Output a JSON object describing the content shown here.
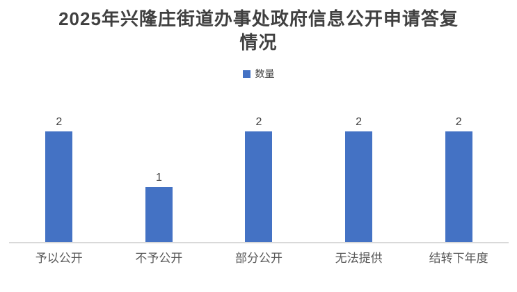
{
  "header": {
    "title_lines": [
      "2025年兴隆庄街道办事处政府信息公开申请答复",
      "情况"
    ]
  },
  "legend": {
    "label": "数量"
  },
  "colors": {
    "bar": "#4472C4",
    "title": "#404040",
    "value_label": "#404040",
    "category_label": "#595959",
    "axis_line": "#D9D9D9",
    "background": "#FFFFFF"
  },
  "chart_data": {
    "type": "bar",
    "title": "2025年兴隆庄街道办事处政府信息公开申请答复情况",
    "categories": [
      "予以公开",
      "不予公开",
      "部分公开",
      "无法提供",
      "结转下年度"
    ],
    "series": [
      {
        "name": "数量",
        "values": [
          2,
          1,
          2,
          2,
          2
        ]
      }
    ],
    "data_labels": [
      2,
      1,
      2,
      2,
      2
    ],
    "xlabel": "",
    "ylabel": "",
    "ylim": [
      0,
      2
    ],
    "grid": false,
    "legend_position": "top",
    "data_labels_visible": true,
    "value_axis_visible": false
  }
}
